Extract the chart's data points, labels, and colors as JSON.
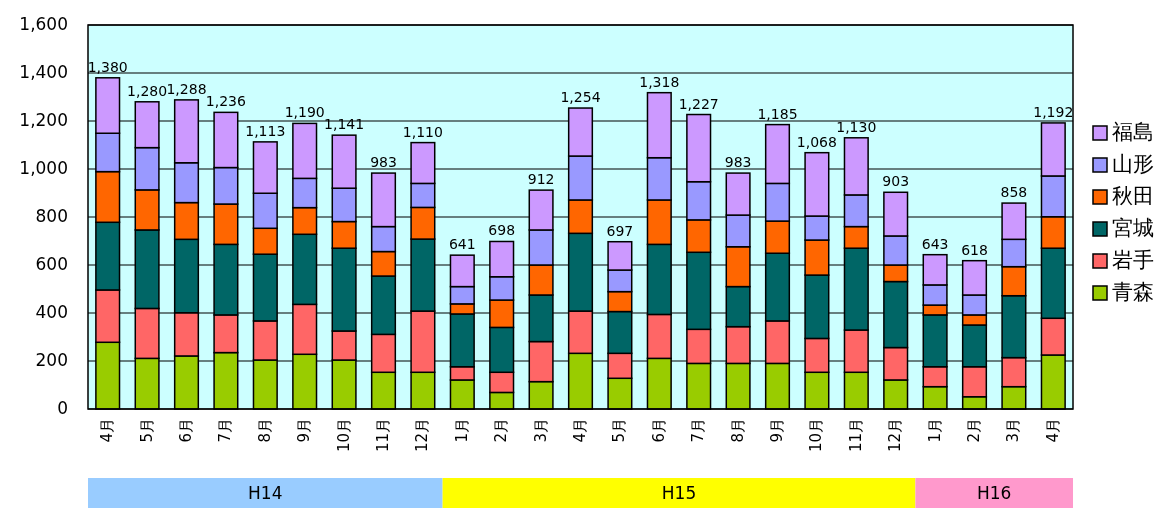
{
  "chart_data": {
    "type": "bar",
    "stacked": true,
    "categories": [
      "4月",
      "5月",
      "6月",
      "7月",
      "8月",
      "9月",
      "10月",
      "11月",
      "12月",
      "1月",
      "2月",
      "3月",
      "4月",
      "5月",
      "6月",
      "7月",
      "8月",
      "9月",
      "10月",
      "11月",
      "12月",
      "1月",
      "2月",
      "3月",
      "4月"
    ],
    "series": [
      {
        "name": "青森",
        "color": "#99cc00",
        "values": [
          278,
          211,
          221,
          235,
          204,
          228,
          204,
          153,
          153,
          121,
          69,
          114,
          232,
          128,
          211,
          190,
          190,
          190,
          153,
          153,
          121,
          93,
          51,
          93,
          225
        ]
      },
      {
        "name": "岩手",
        "color": "#ff6666",
        "values": [
          218,
          208,
          180,
          157,
          163,
          208,
          121,
          158,
          255,
          55,
          84,
          167,
          176,
          104,
          183,
          142,
          153,
          177,
          141,
          176,
          135,
          83,
          125,
          121,
          153
        ]
      },
      {
        "name": "宮城",
        "color": "#006666",
        "values": [
          282,
          327,
          306,
          294,
          278,
          292,
          345,
          243,
          300,
          220,
          187,
          194,
          324,
          174,
          292,
          321,
          167,
          282,
          264,
          341,
          275,
          216,
          174,
          258,
          292
        ]
      },
      {
        "name": "秋田",
        "color": "#ff6600",
        "values": [
          211,
          167,
          153,
          168,
          108,
          111,
          111,
          102,
          132,
          42,
          114,
          125,
          139,
          83,
          185,
          135,
          166,
          134,
          146,
          90,
          69,
          41,
          42,
          121,
          131
        ]
      },
      {
        "name": "山形",
        "color": "#9999ff",
        "values": [
          160,
          176,
          166,
          152,
          146,
          122,
          139,
          104,
          100,
          72,
          97,
          146,
          183,
          90,
          176,
          159,
          132,
          157,
          100,
          132,
          121,
          84,
          83,
          114,
          170
        ]
      },
      {
        "name": "福島",
        "color": "#cc99ff",
        "values": [
          231,
          191,
          262,
          230,
          214,
          229,
          221,
          223,
          170,
          131,
          147,
          166,
          200,
          118,
          271,
          280,
          175,
          245,
          264,
          238,
          182,
          126,
          143,
          151,
          221
        ]
      }
    ],
    "totals": [
      "1,380",
      "1,280",
      "1,288",
      "1,236",
      "1,113",
      "1,190",
      "1,141",
      "983",
      "1,110",
      "641",
      "698",
      "912",
      "1,254",
      "697",
      "1,318",
      "1,227",
      "983",
      "1,185",
      "1,068",
      "1,130",
      "903",
      "643",
      "618",
      "858",
      "1,192"
    ],
    "ylim": [
      0,
      1600
    ],
    "yticks": [
      0,
      200,
      400,
      600,
      800,
      {
        "value": 1000,
        "label": "1,000"
      },
      {
        "value": 1200,
        "label": "1,200"
      },
      {
        "value": 1400,
        "label": "1,400"
      },
      {
        "value": 1600,
        "label": "1,600"
      }
    ],
    "grid": "y",
    "legend": "right",
    "annotations": [
      "H14",
      "H15",
      "H16"
    ]
  }
}
